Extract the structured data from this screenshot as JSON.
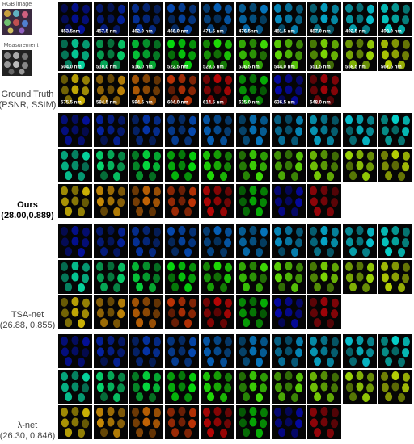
{
  "inset_labels": [
    "RGB image",
    "Measurement"
  ],
  "wavelengths": [
    "453.5nm",
    "457.5 nm",
    "462.0 nm",
    "466.0 nm",
    "471.5 nm",
    "476.5nm",
    "481.5 nm",
    "487.0 nm",
    "492.5 nm",
    "498.0 nm",
    "504.0 nm",
    "510.0 nm",
    "516.0 nm",
    "522.5 nm",
    "529.5 nm",
    "536.5 nm",
    "544.0 nm",
    "551.5 nm",
    "558.5 nm",
    "567.5 nm",
    "575.5 nm",
    "584.5 nm",
    "594.5 nm",
    "604.0 nm",
    "614.5 nm",
    "625.0 nm",
    "636.5 nm",
    "648.0 nm"
  ],
  "methods": [
    {
      "name": "Ground Truth",
      "score": "(PSNR, SSIM)"
    },
    {
      "name": "Ours",
      "score": "(28.00,0.889)"
    },
    {
      "name": "TSA-net",
      "score": "(26.88, 0.855)"
    },
    {
      "name": "λ-net",
      "score": "(26.30, 0.846)"
    }
  ]
}
